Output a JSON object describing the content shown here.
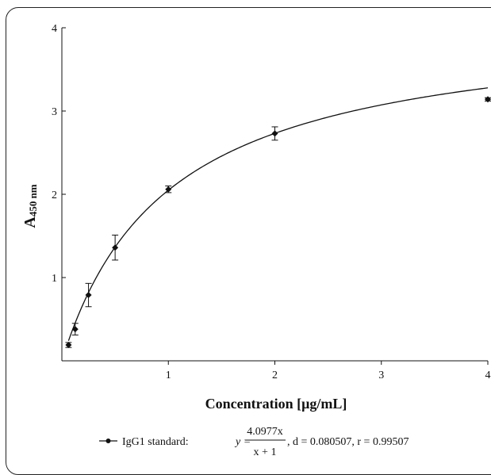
{
  "chart_data": {
    "type": "scatter",
    "xlabel": "Concentration [μg/mL]",
    "ylabel_main": "A",
    "ylabel_sub": "450 nm",
    "xlim": [
      0,
      4
    ],
    "ylim": [
      0,
      4
    ],
    "x_ticks": [
      "1",
      "2",
      "3",
      "4"
    ],
    "y_ticks": [
      "1",
      "2",
      "3",
      "4"
    ],
    "grid": false,
    "series": [
      {
        "name": "IgG1 standard",
        "points": [
          {
            "x": 0.0625,
            "y": 0.19,
            "err": 0.03
          },
          {
            "x": 0.125,
            "y": 0.38,
            "err": 0.07
          },
          {
            "x": 0.25,
            "y": 0.79,
            "err": 0.14
          },
          {
            "x": 0.5,
            "y": 1.36,
            "err": 0.15
          },
          {
            "x": 1,
            "y": 2.06,
            "err": 0.04
          },
          {
            "x": 2,
            "y": 2.73,
            "err": 0.08
          },
          {
            "x": 4,
            "y": 3.14,
            "err": 0.02
          }
        ]
      }
    ],
    "fit": {
      "a": 4.0977,
      "b": 1
    },
    "legend": {
      "label": "IgG1 standard: ",
      "y_eq": "y = ",
      "numerator": "4.0977x",
      "denominator": "x + 1",
      "stats": ", d = 0.080507, r = 0.99507"
    }
  }
}
